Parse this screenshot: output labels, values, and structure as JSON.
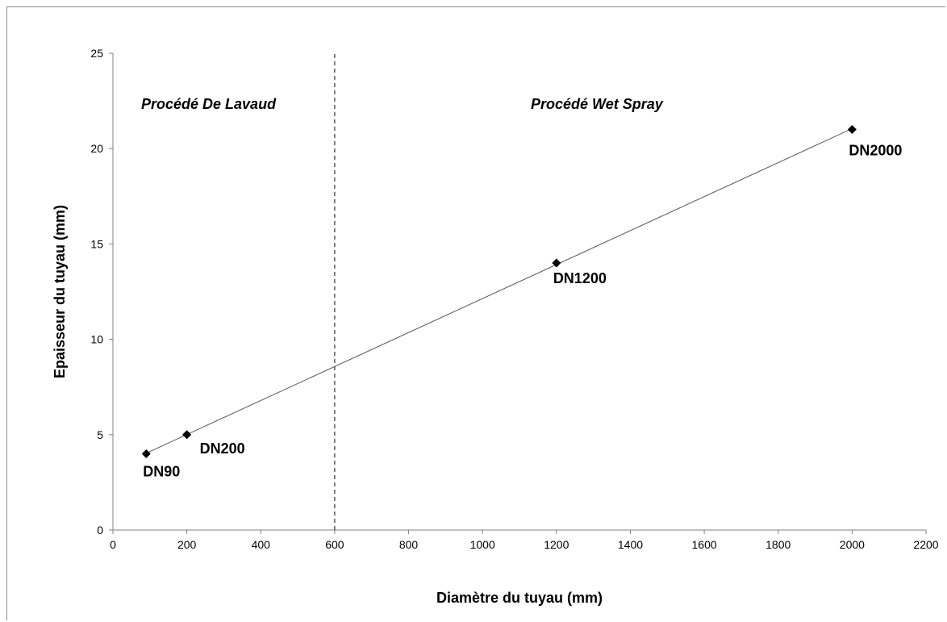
{
  "chart_data": {
    "type": "scatter",
    "xlabel": "Diamètre du tuyau (mm)",
    "ylabel": "Epaisseur du tuyau (mm)",
    "xlim": [
      0,
      2200
    ],
    "ylim": [
      0,
      25
    ],
    "x_ticks": [
      0,
      200,
      400,
      600,
      800,
      1000,
      1200,
      1400,
      1600,
      1800,
      2000,
      2200
    ],
    "y_ticks": [
      0,
      5,
      10,
      15,
      20,
      25
    ],
    "grid": false,
    "legend": "none",
    "series": [
      {
        "points": [
          {
            "x": 90,
            "y": 4,
            "label": "DN90"
          },
          {
            "x": 200,
            "y": 5,
            "label": "DN200"
          },
          {
            "x": 1200,
            "y": 14,
            "label": "DN1200"
          },
          {
            "x": 2000,
            "y": 21,
            "label": "DN2000"
          }
        ],
        "trendline": "linear",
        "color": "#000000",
        "marker": "diamond"
      }
    ],
    "annotations": [
      {
        "type": "vline",
        "x": 600,
        "style": "dashed"
      },
      {
        "type": "text",
        "text": "Procédé De Lavaud",
        "region": "left"
      },
      {
        "type": "text",
        "text": "Procédé Wet Spray",
        "region": "right"
      }
    ]
  }
}
